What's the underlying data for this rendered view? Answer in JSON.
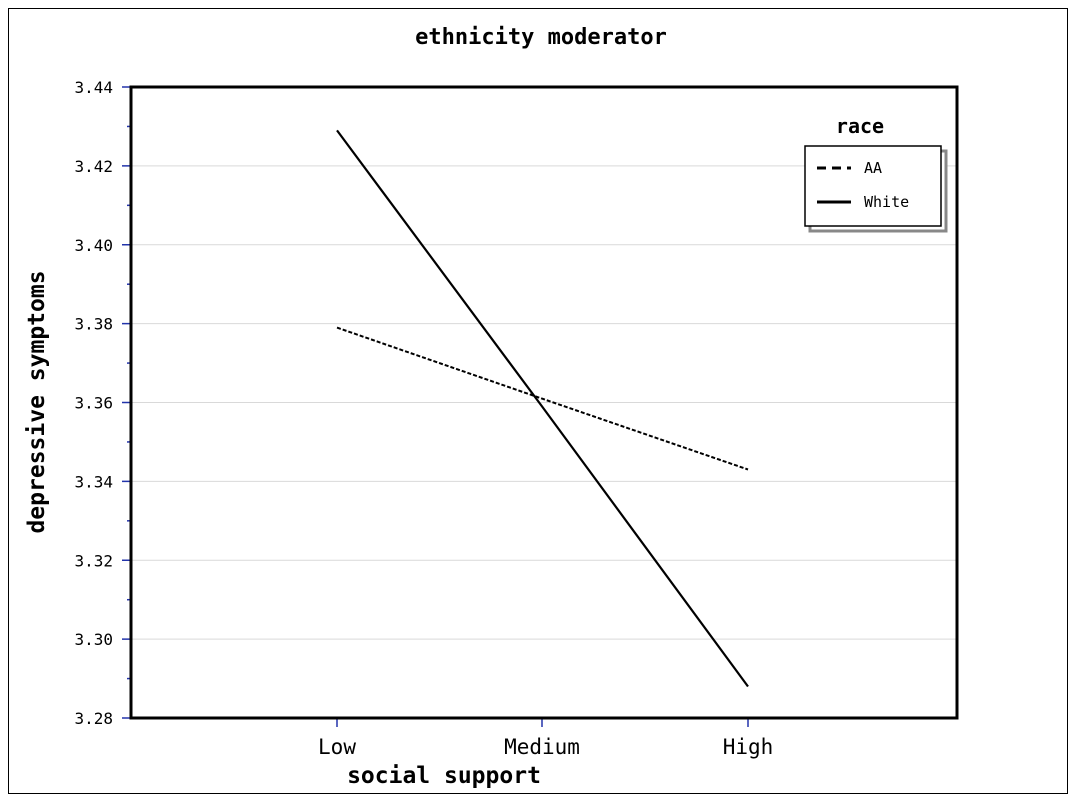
{
  "chart_data": {
    "type": "line",
    "title": "ethnicity moderator",
    "xlabel": "social support",
    "ylabel": "depressive symptoms",
    "categories": [
      "Low",
      "Medium",
      "High"
    ],
    "ylim": [
      3.28,
      3.44
    ],
    "yticks": [
      "3.28",
      "3.30",
      "3.32",
      "3.34",
      "3.36",
      "3.38",
      "3.40",
      "3.42",
      "3.44"
    ],
    "grid": true,
    "legend": {
      "title": "race",
      "position": "top-right"
    },
    "series": [
      {
        "name": "AA",
        "values": [
          3.379,
          3.361,
          3.343
        ],
        "style": "dashed",
        "color": "#000000"
      },
      {
        "name": "White",
        "values": [
          3.429,
          3.359,
          3.288
        ],
        "style": "solid",
        "color": "#000000"
      }
    ]
  }
}
